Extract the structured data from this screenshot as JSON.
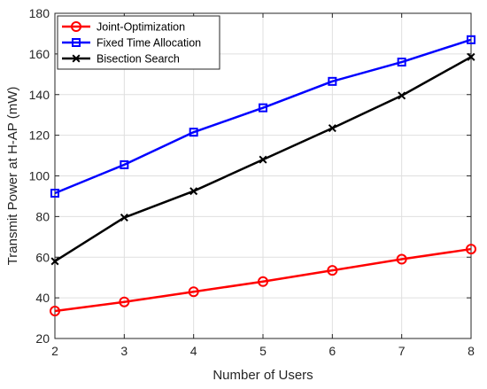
{
  "chart_data": {
    "type": "line",
    "title": "",
    "xlabel": "Number of Users",
    "ylabel": "Transmit Power at H-AP (mW)",
    "x": [
      2,
      3,
      4,
      5,
      6,
      7,
      8
    ],
    "xlim": [
      2,
      8
    ],
    "ylim": [
      20,
      180
    ],
    "xticks": [
      2,
      3,
      4,
      5,
      6,
      7,
      8
    ],
    "yticks": [
      20,
      40,
      60,
      80,
      100,
      120,
      140,
      160,
      180
    ],
    "grid": true,
    "legend_position": "top-left",
    "series": [
      {
        "name": "Joint-Optimization",
        "color": "#ff0000",
        "marker": "circle",
        "values": [
          33.5,
          38,
          43,
          48,
          53.5,
          59,
          64
        ]
      },
      {
        "name": "Fixed Time Allocation",
        "color": "#0000ff",
        "marker": "square",
        "values": [
          91.5,
          105.5,
          121.5,
          133.5,
          146.5,
          156,
          167
        ]
      },
      {
        "name": "Bisection Search",
        "color": "#000000",
        "marker": "x",
        "values": [
          58,
          79.5,
          92.5,
          108,
          123.5,
          139.5,
          158.5
        ]
      }
    ]
  }
}
